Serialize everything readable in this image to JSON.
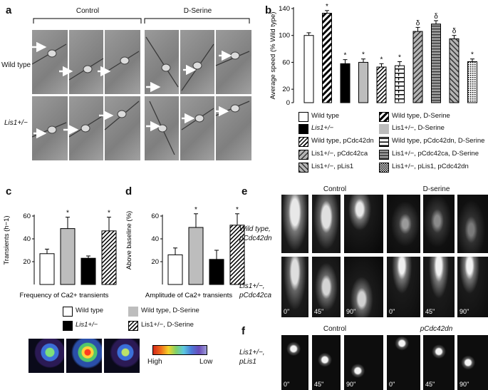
{
  "panel_a": {
    "label": "a",
    "groups": [
      "Control",
      "D-Serine"
    ],
    "rows": [
      "Wild type",
      "Lis1+/−"
    ]
  },
  "panel_b": {
    "label": "b",
    "legend": [
      {
        "id": "wt",
        "text": "Wild type",
        "style": "white"
      },
      {
        "id": "wt-ds",
        "text": "Wild type, D-Serine",
        "style": "diag-coarse"
      },
      {
        "id": "lis1",
        "text": "Lis1+/−",
        "style": "black"
      },
      {
        "id": "lis1-ds",
        "text": "Lis1+/−, D-Serine",
        "style": "lightgray"
      },
      {
        "id": "wt-dn",
        "text": "Wild type, pCdc42dn",
        "style": "diag-fine"
      },
      {
        "id": "wt-dn-ds",
        "text": "Wild type, pCdc42dn, D-Serine",
        "style": "hbrick"
      },
      {
        "id": "lis1-ca",
        "text": "Lis1+/−, pCdc42ca",
        "style": "gray-diag"
      },
      {
        "id": "lis1-ca-ds",
        "text": "Lis1+/−, pCdc42ca, D-Serine",
        "style": "gray-hline"
      },
      {
        "id": "lis1-plis1",
        "text": "Lis1+/−, pLis1",
        "style": "gray-diag2"
      },
      {
        "id": "lis1-plis1-dn",
        "text": "Lis1+/−, pLis1, pCdc42dn",
        "style": "grid"
      }
    ]
  },
  "chart_data": [
    {
      "panel": "b",
      "type": "bar",
      "ylabel": "Average speed (% Wild type)",
      "ylim": [
        0,
        140
      ],
      "yticks": [
        0,
        20,
        60,
        100,
        140
      ],
      "categories": [
        "Wild type",
        "Wild type, D-Serine",
        "Lis1+/−",
        "Lis1+/−, D-Serine",
        "Wild type, pCdc42dn",
        "Wild type, pCdc42dn, D-Serine",
        "Lis1+/−, pCdc42ca",
        "Lis1+/−, pCdc42ca, D-Serine",
        "Lis1+/−, pLis1",
        "Lis1+/−, pLis1, pCdc42dn"
      ],
      "values": [
        100,
        133,
        58,
        60,
        53,
        55,
        106,
        117,
        95,
        61
      ],
      "errors": [
        4,
        4,
        6,
        5,
        5,
        6,
        6,
        5,
        5,
        4
      ],
      "markers": [
        "",
        "*",
        "*",
        "*",
        "*",
        "*",
        "δ",
        "δ",
        "δ",
        "*"
      ],
      "styles": [
        "white",
        "diag-coarse",
        "black",
        "lightgray",
        "diag-fine",
        "hbrick",
        "gray-diag",
        "gray-hline",
        "gray-diag2",
        "grid"
      ]
    },
    {
      "panel": "c",
      "type": "bar",
      "xlabel": "Frequency of Ca2+ transients",
      "ylabel": "Transients (h−1)",
      "ylim": [
        0,
        60
      ],
      "yticks": [
        20,
        40,
        60
      ],
      "categories": [
        "Wild type",
        "Wild type, D-Serine",
        "Lis1+/−",
        "Lis1+/−, D-Serine"
      ],
      "values": [
        27,
        49,
        23,
        47
      ],
      "errors": [
        4,
        10,
        2,
        12
      ],
      "markers": [
        "",
        "*",
        "",
        "*"
      ],
      "styles": [
        "white",
        "lightgray",
        "black",
        "diag-fine"
      ]
    },
    {
      "panel": "d",
      "type": "bar",
      "xlabel": "Amplitude of Ca2+ transients",
      "ylabel": "Above baseline (%)",
      "ylim": [
        0,
        60
      ],
      "yticks": [
        20,
        40,
        60
      ],
      "categories": [
        "Wild type",
        "Wild type, D-Serine",
        "Lis1+/−",
        "Lis1+/−, D-Serine"
      ],
      "values": [
        26,
        50,
        22,
        52
      ],
      "errors": [
        6,
        12,
        8,
        10
      ],
      "markers": [
        "",
        "*",
        "",
        "*"
      ],
      "styles": [
        "white",
        "lightgray",
        "black",
        "diag-fine"
      ]
    }
  ],
  "panel_c": {
    "label": "c"
  },
  "panel_d": {
    "label": "d"
  },
  "cd_legend": [
    {
      "text": "Wild type",
      "style": "white"
    },
    {
      "text": "Wild type, D-Serine",
      "style": "lightgray"
    },
    {
      "text": "Lis1+/−",
      "style": "black"
    },
    {
      "text": "Lis1+/−, D-Serine",
      "style": "diag-fine"
    }
  ],
  "colorbar": {
    "high": "High",
    "low": "Low"
  },
  "panel_e": {
    "label": "e",
    "groups": [
      "Control",
      "D-serine"
    ],
    "rows": [
      "Wild type, pCdc42dn",
      "Lis1+/−, pCdc42ca"
    ],
    "times": [
      "0''",
      "45''",
      "90''",
      "0''",
      "45''",
      "90''"
    ]
  },
  "panel_f": {
    "label": "f",
    "groups": [
      "Control",
      "pCdc42dn"
    ],
    "rows": [
      "Lis1+/−, pLis1"
    ],
    "times": [
      "0''",
      "45''",
      "90''",
      "0''",
      "45''",
      "90''"
    ]
  }
}
